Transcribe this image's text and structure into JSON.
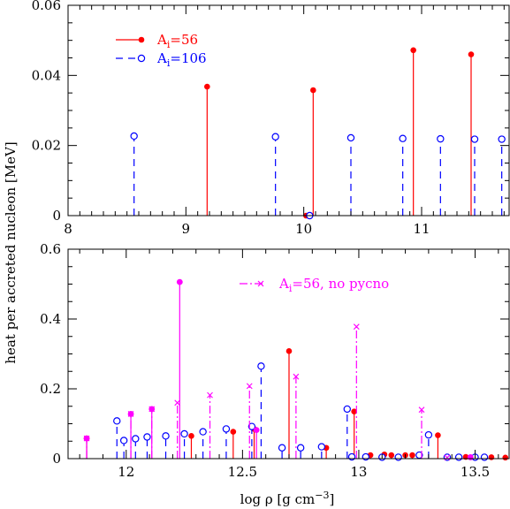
{
  "chart_data": [
    {
      "type": "stem",
      "panel": "top",
      "xlim": [
        8,
        11.75
      ],
      "ylim": [
        0,
        0.06
      ],
      "x_ticks": [
        "8",
        "9",
        "10",
        "11"
      ],
      "y_ticks": [
        "0",
        "0.02",
        "0.04",
        "0.06"
      ],
      "series": [
        {
          "name": "A_i=56",
          "legend_base": "A",
          "legend_sub": "i",
          "legend_rest": "=56",
          "color": "#ff0000",
          "line_style": "solid",
          "marker": "filled-circle",
          "x": [
            9.18,
            10.08,
            10.93,
            11.42
          ],
          "y": [
            0.0368,
            0.0358,
            0.0472,
            0.046
          ]
        },
        {
          "name": "A_i=106",
          "legend_base": "A",
          "legend_sub": "i",
          "legend_rest": "=106",
          "color": "#0000ff",
          "line_style": "dashed",
          "marker": "open-circle",
          "x": [
            8.56,
            9.76,
            10.4,
            10.84,
            11.16,
            11.45,
            11.68
          ],
          "y": [
            0.0227,
            0.0225,
            0.0222,
            0.022,
            0.0219,
            0.0218,
            0.0218
          ]
        }
      ],
      "near_zero_points": [
        {
          "x": 10.02,
          "color": "#ff0000",
          "marker": "filled-circle"
        },
        {
          "x": 10.05,
          "color": "#0000ff",
          "marker": "open-circle"
        }
      ]
    },
    {
      "type": "stem",
      "panel": "bottom",
      "xlim": [
        11.75,
        13.65
      ],
      "ylim": [
        0,
        0.6
      ],
      "x_ticks": [
        "12",
        "12.5",
        "13",
        "13.5"
      ],
      "y_ticks": [
        "0",
        "0.2",
        "0.4",
        "0.6"
      ],
      "series": [
        {
          "name": "A_i=56",
          "color": "#ff0000",
          "line_style": "solid",
          "marker": "filled-circle",
          "x": [
            11.83,
            12.28,
            12.46,
            12.55,
            12.7,
            12.86,
            12.98,
            13.05,
            13.11,
            13.14,
            13.2,
            13.23,
            13.34,
            13.46,
            13.57,
            13.63
          ],
          "y": [
            0.058,
            0.065,
            0.077,
            0.085,
            0.308,
            0.031,
            0.135,
            0.01,
            0.012,
            0.01,
            0.01,
            0.01,
            0.067,
            0.005,
            0.004,
            0.003
          ]
        },
        {
          "name": "A_i=106",
          "color": "#0000ff",
          "line_style": "dashed",
          "marker": "open-circle",
          "x": [
            11.96,
            11.99,
            12.04,
            12.09,
            12.17,
            12.25,
            12.33,
            12.43,
            12.54,
            12.58,
            12.67,
            12.75,
            12.84,
            12.95,
            12.97,
            13.03,
            13.1,
            13.17,
            13.26,
            13.3,
            13.38,
            13.43,
            13.5,
            13.54
          ],
          "y": [
            0.108,
            0.052,
            0.057,
            0.062,
            0.065,
            0.071,
            0.077,
            0.085,
            0.092,
            0.265,
            0.031,
            0.031,
            0.034,
            0.142,
            0.005,
            0.005,
            0.004,
            0.004,
            0.01,
            0.068,
            0.004,
            0.004,
            0.004,
            0.004
          ]
        },
        {
          "name": "A_i=56, no pycno",
          "legend_base": "A",
          "legend_sub": "i",
          "legend_rest": "=56, no pycno",
          "color": "#ff00ff",
          "line_style": "dashdot",
          "marker": "cross",
          "x": [
            11.83,
            12.02,
            12.11,
            12.22,
            12.36,
            12.53,
            12.73,
            12.99,
            13.27,
            13.38
          ],
          "y": [
            0.058,
            0.128,
            0.142,
            0.16,
            0.182,
            0.208,
            0.235,
            0.378,
            0.14,
            0.003
          ]
        }
      ],
      "magenta_dots": [
        {
          "x": 11.83,
          "y": 0.058
        },
        {
          "x": 12.02,
          "y": 0.128
        },
        {
          "x": 12.11,
          "y": 0.142
        },
        {
          "x": 12.23,
          "y": 0.506
        },
        {
          "x": 12.56,
          "y": 0.082
        },
        {
          "x": 13.48,
          "y": 0.004
        }
      ]
    }
  ],
  "axes": {
    "ylabel": "heat per accreted nucleon [MeV]",
    "xlabel_main": "log ρ [g cm",
    "xlabel_sup": "−3",
    "xlabel_end": "]"
  }
}
